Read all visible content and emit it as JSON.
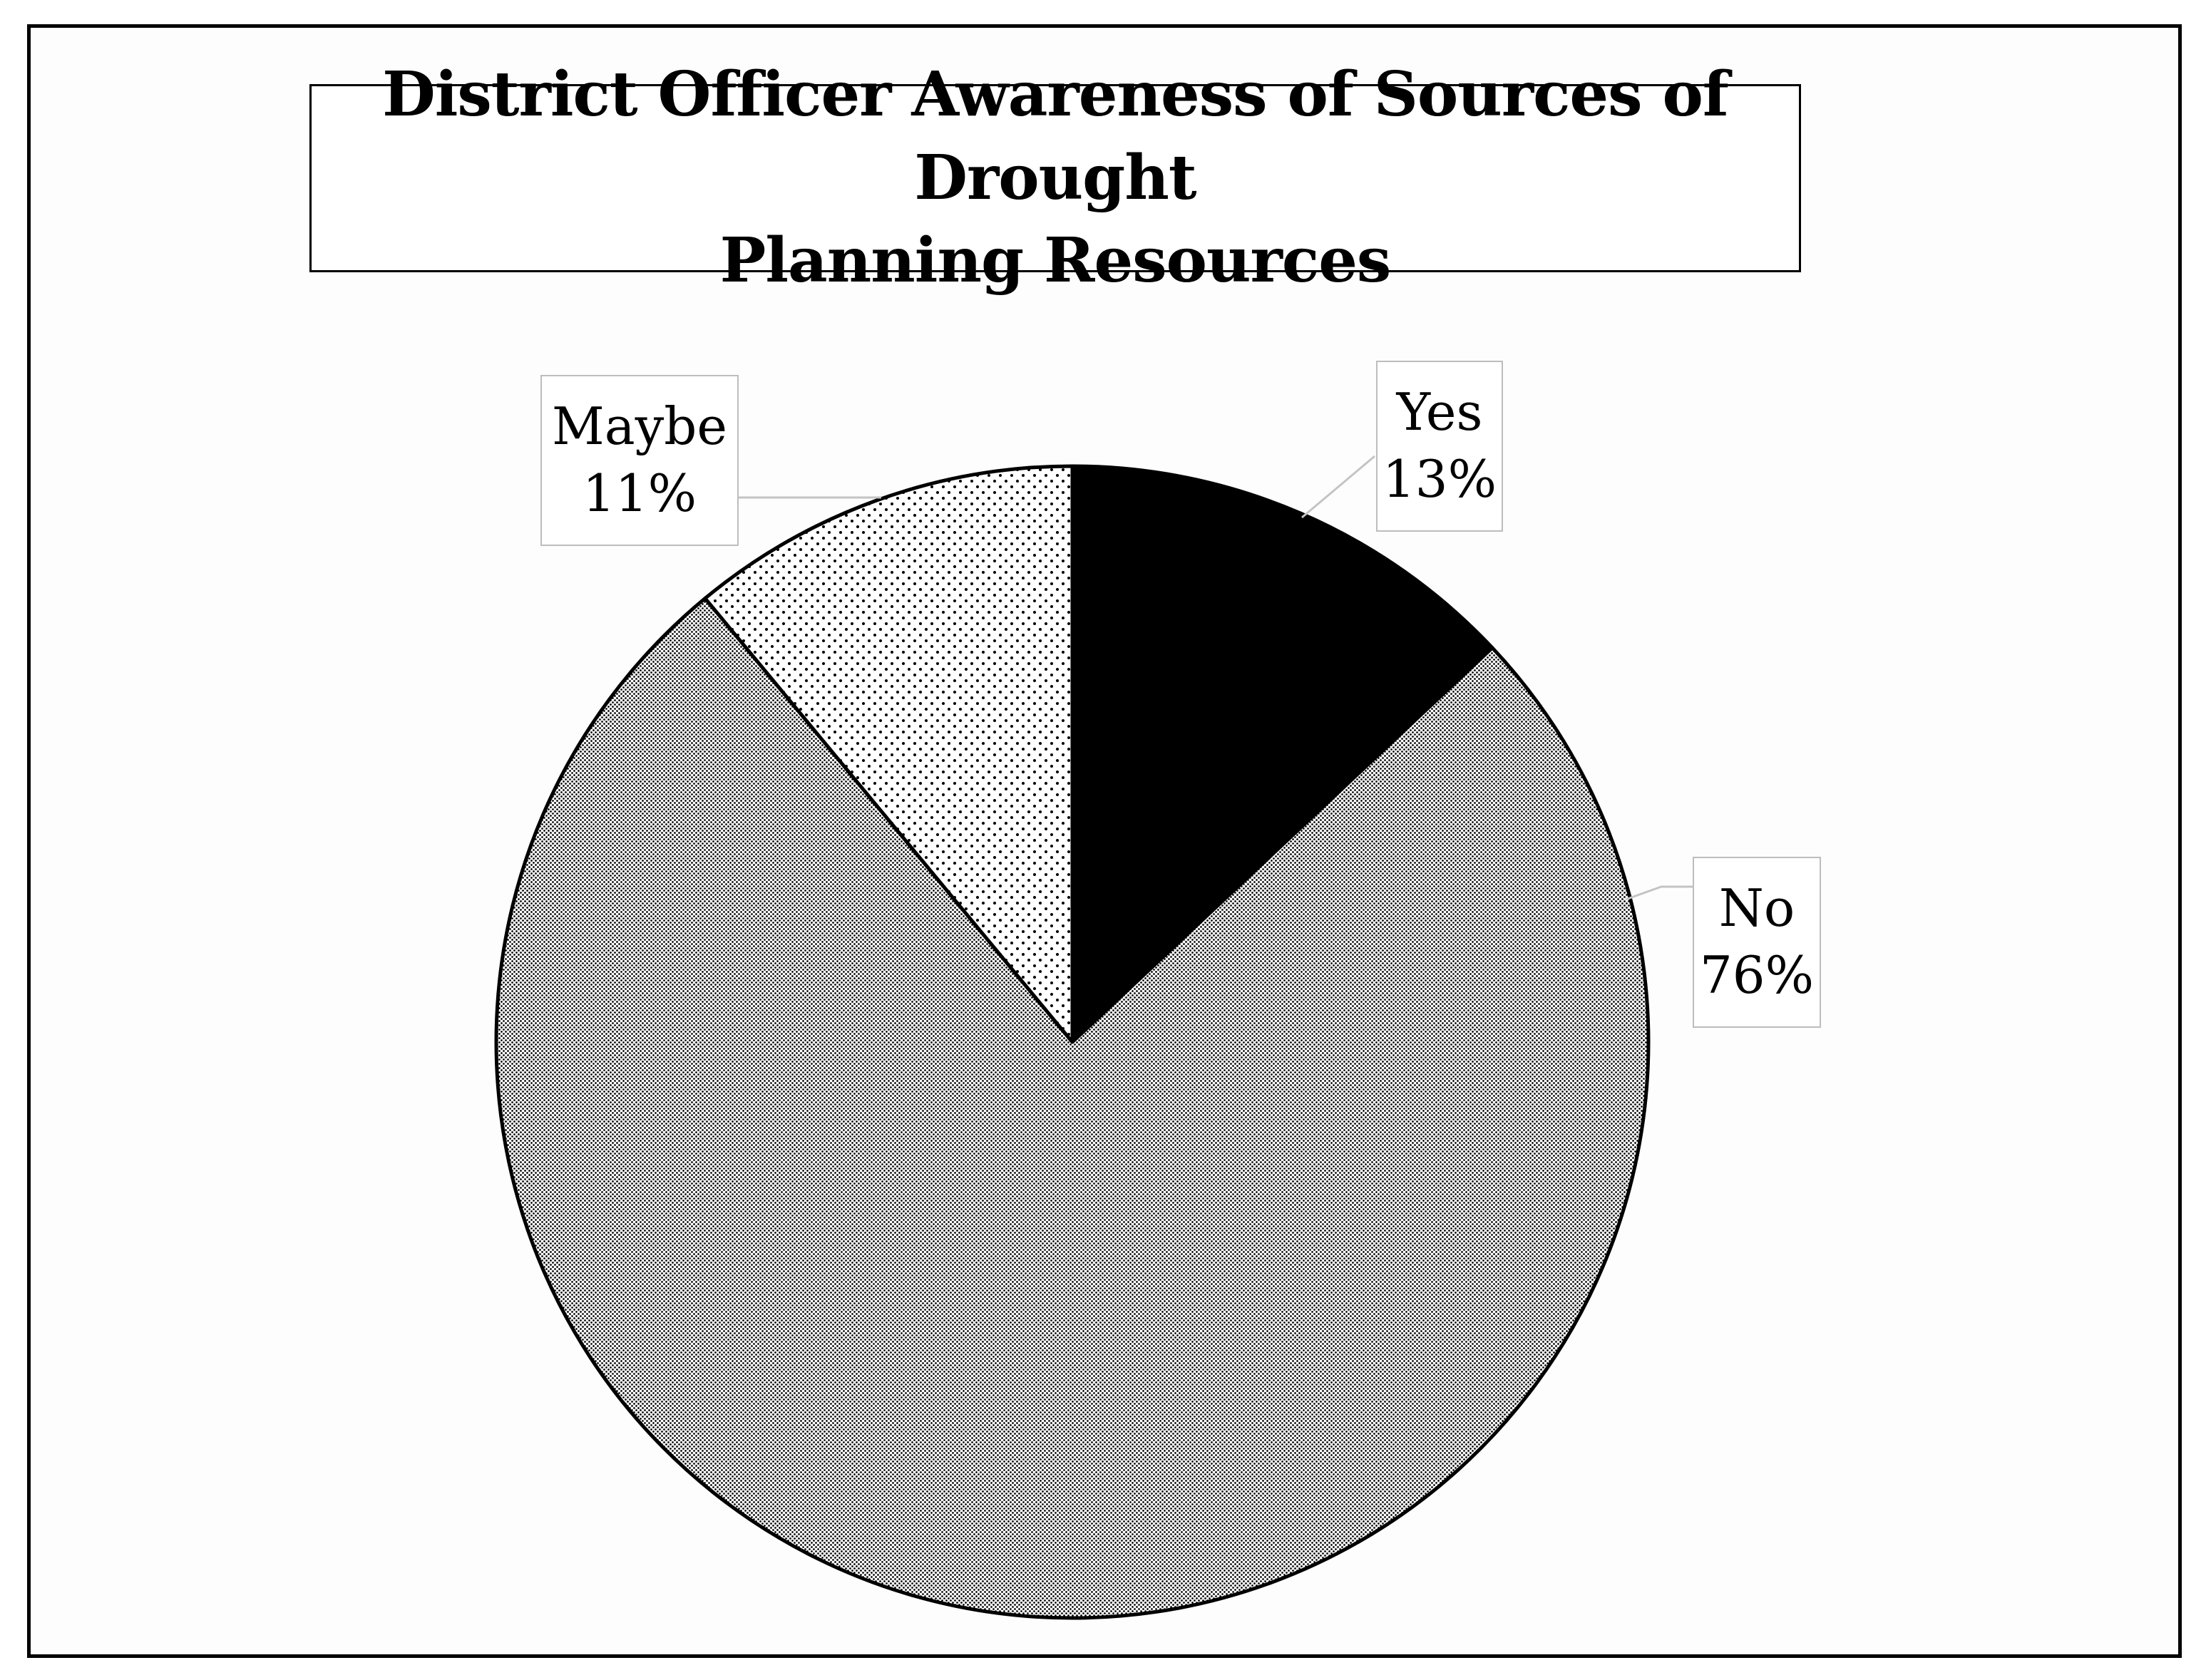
{
  "chart_data": {
    "type": "pie",
    "title": "District Officer Awareness of Sources of Drought Planning Resources",
    "title_lines": [
      "District Officer Awareness of Sources of Drought",
      "Planning Resources"
    ],
    "categories": [
      "Yes",
      "No",
      "Maybe"
    ],
    "values": [
      13,
      76,
      11
    ],
    "unit": "%",
    "labels": [
      {
        "category": "Yes",
        "percent_text": "13%"
      },
      {
        "category": "No",
        "percent_text": "76%"
      },
      {
        "category": "Maybe",
        "percent_text": "11%"
      }
    ],
    "fills": {
      "Yes": "solid black",
      "No": "fine dense stipple",
      "Maybe": "sparse dot stipple"
    },
    "start_angle": "12 o'clock",
    "direction": "clockwise",
    "legend": "none (data labels with leader lines)"
  }
}
